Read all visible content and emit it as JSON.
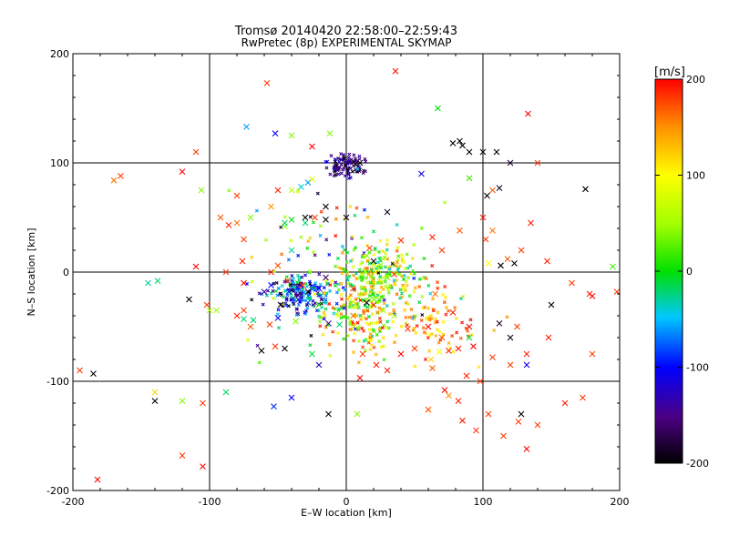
{
  "chart_data": {
    "type": "scatter",
    "title": "Tromsø 20140420 22:58:00–22:59:43",
    "subtitle": "RwPretec (8p) EXPERIMENTAL SKYMAP",
    "xlabel": "E–W location [km]",
    "ylabel": "N–S location [km]",
    "xlim": [
      -200,
      200
    ],
    "ylim": [
      -200,
      200
    ],
    "x_ticks": [
      -200,
      -100,
      0,
      100,
      200
    ],
    "y_ticks": [
      -200,
      -100,
      0,
      100,
      200
    ],
    "grid_lines": [
      -100,
      0,
      100
    ],
    "colorbar": {
      "label": "[m/s]",
      "min": -200,
      "max": 200,
      "ticks": [
        200,
        100,
        0,
        -100,
        -200
      ]
    },
    "points": [
      {
        "x": 133,
        "y": 145,
        "v": 200,
        "m": "x"
      },
      {
        "x": 128,
        "y": 20,
        "v": 180,
        "m": "x"
      },
      {
        "x": 160,
        "y": -120,
        "v": 190,
        "m": "x"
      },
      {
        "x": 132,
        "y": -162,
        "v": 200,
        "m": "x"
      },
      {
        "x": 126,
        "y": -137,
        "v": 180,
        "m": "x"
      },
      {
        "x": 85,
        "y": -136,
        "v": 190,
        "m": "x"
      },
      {
        "x": 60,
        "y": -126,
        "v": 170,
        "m": "x"
      },
      {
        "x": 75,
        "y": -113,
        "v": 150,
        "m": "x"
      },
      {
        "x": 82,
        "y": -118,
        "v": 190,
        "m": "x"
      },
      {
        "x": 72,
        "y": -108,
        "v": 200,
        "m": "x"
      },
      {
        "x": 100,
        "y": 50,
        "v": 190,
        "m": "x"
      },
      {
        "x": 180,
        "y": -22,
        "v": 200,
        "m": "x"
      },
      {
        "x": 83,
        "y": 38,
        "v": 170,
        "m": "x"
      },
      {
        "x": 107,
        "y": 75,
        "v": 170,
        "m": "x"
      },
      {
        "x": 120,
        "y": -60,
        "v": -190,
        "m": "x"
      },
      {
        "x": 128,
        "y": -130,
        "v": -200,
        "m": "x"
      },
      {
        "x": 132,
        "y": -85,
        "v": -110,
        "m": "x"
      },
      {
        "x": 112,
        "y": -47,
        "v": -180,
        "m": "x"
      },
      {
        "x": 103,
        "y": 70,
        "v": -200,
        "m": "x"
      },
      {
        "x": 112,
        "y": 77,
        "v": -190,
        "m": "x"
      },
      {
        "x": 113,
        "y": 6,
        "v": -200,
        "m": "x"
      },
      {
        "x": 123,
        "y": 8,
        "v": -200,
        "m": "x"
      },
      {
        "x": 104,
        "y": 8,
        "v": 100,
        "m": "x"
      },
      {
        "x": 90,
        "y": 86,
        "v": 20,
        "m": "x"
      },
      {
        "x": 55,
        "y": 90,
        "v": -110,
        "m": "x"
      },
      {
        "x": 85,
        "y": 116,
        "v": -200,
        "m": "x"
      },
      {
        "x": 30,
        "y": 55,
        "v": -190,
        "m": "x"
      },
      {
        "x": 40,
        "y": 29,
        "v": 180,
        "m": "x"
      },
      {
        "x": 63,
        "y": 32,
        "v": 190,
        "m": "x"
      },
      {
        "x": 70,
        "y": 20,
        "v": 180,
        "m": "x"
      },
      {
        "x": 35,
        "y": -2,
        "v": 180,
        "m": "x"
      },
      {
        "x": 65,
        "y": -20,
        "v": 160,
        "m": "x"
      },
      {
        "x": 78,
        "y": -37,
        "v": 190,
        "m": "x"
      },
      {
        "x": 90,
        "y": -50,
        "v": 200,
        "m": "x"
      },
      {
        "x": 70,
        "y": -60,
        "v": 170,
        "m": "x"
      },
      {
        "x": 60,
        "y": -50,
        "v": 200,
        "m": "x"
      },
      {
        "x": 45,
        "y": -52,
        "v": 180,
        "m": "x"
      },
      {
        "x": 50,
        "y": -70,
        "v": 180,
        "m": "x"
      },
      {
        "x": 75,
        "y": -72,
        "v": 190,
        "m": "x"
      },
      {
        "x": 82,
        "y": -70,
        "v": 190,
        "m": "x"
      },
      {
        "x": 63,
        "y": -88,
        "v": 170,
        "m": "x"
      },
      {
        "x": 88,
        "y": -95,
        "v": 190,
        "m": "x"
      },
      {
        "x": 68,
        "y": -73,
        "v": 100,
        "m": "x"
      },
      {
        "x": 90,
        "y": -60,
        "v": -10,
        "m": "x"
      },
      {
        "x": 93,
        "y": -68,
        "v": 200,
        "m": "x"
      },
      {
        "x": 62,
        "y": -80,
        "v": 120,
        "m": "x"
      },
      {
        "x": 30,
        "y": -90,
        "v": 190,
        "m": "x"
      },
      {
        "x": 10,
        "y": -97,
        "v": 200,
        "m": "x"
      },
      {
        "x": 12,
        "y": -75,
        "v": 180,
        "m": "x"
      },
      {
        "x": 40,
        "y": -75,
        "v": 200,
        "m": "x"
      },
      {
        "x": 20,
        "y": -30,
        "v": 190,
        "m": "x"
      },
      {
        "x": 5,
        "y": -40,
        "v": 160,
        "m": "x"
      },
      {
        "x": 22,
        "y": -85,
        "v": 190,
        "m": "x"
      },
      {
        "x": 8,
        "y": -130,
        "v": 40,
        "m": "x"
      },
      {
        "x": -13,
        "y": -130,
        "v": -200,
        "m": "x"
      },
      {
        "x": -40,
        "y": -115,
        "v": -100,
        "m": "x"
      },
      {
        "x": -53,
        "y": -123,
        "v": -90,
        "m": "x"
      },
      {
        "x": -20,
        "y": -85,
        "v": -130,
        "m": "x"
      },
      {
        "x": -25,
        "y": -75,
        "v": -10,
        "m": "x"
      },
      {
        "x": -45,
        "y": -70,
        "v": -200,
        "m": "x"
      },
      {
        "x": -62,
        "y": -72,
        "v": -200,
        "m": "x"
      },
      {
        "x": -52,
        "y": -68,
        "v": 180,
        "m": "x"
      },
      {
        "x": -70,
        "y": -50,
        "v": 170,
        "m": "x"
      },
      {
        "x": -75,
        "y": -35,
        "v": 180,
        "m": "x"
      },
      {
        "x": -80,
        "y": -40,
        "v": 190,
        "m": "x"
      },
      {
        "x": -75,
        "y": -43,
        "v": -20,
        "m": "x"
      },
      {
        "x": -95,
        "y": -35,
        "v": 50,
        "m": "x"
      },
      {
        "x": -102,
        "y": -30,
        "v": 180,
        "m": "x"
      },
      {
        "x": -110,
        "y": 5,
        "v": 200,
        "m": "x"
      },
      {
        "x": -120,
        "y": 92,
        "v": 200,
        "m": "x"
      },
      {
        "x": -106,
        "y": 75,
        "v": 40,
        "m": "x"
      },
      {
        "x": -138,
        "y": -8,
        "v": -20,
        "m": "x"
      },
      {
        "x": -88,
        "y": 0,
        "v": 180,
        "m": "x"
      },
      {
        "x": -75,
        "y": -10,
        "v": 200,
        "m": "x"
      },
      {
        "x": -76,
        "y": 10,
        "v": 190,
        "m": "x"
      },
      {
        "x": -75,
        "y": 30,
        "v": 180,
        "m": "x"
      },
      {
        "x": -80,
        "y": 45,
        "v": 160,
        "m": "x"
      },
      {
        "x": -86,
        "y": 43,
        "v": 190,
        "m": "x"
      },
      {
        "x": -70,
        "y": 50,
        "v": 40,
        "m": "x"
      },
      {
        "x": -55,
        "y": 60,
        "v": 150,
        "m": "x"
      },
      {
        "x": -45,
        "y": 42,
        "v": 40,
        "m": "x"
      },
      {
        "x": -40,
        "y": 48,
        "v": 0,
        "m": "x"
      },
      {
        "x": -30,
        "y": 50,
        "v": -200,
        "m": "x"
      },
      {
        "x": -23,
        "y": 50,
        "v": 180,
        "m": "x"
      },
      {
        "x": -15,
        "y": 48,
        "v": -200,
        "m": "x"
      },
      {
        "x": 0,
        "y": 50,
        "v": -190,
        "m": "x"
      },
      {
        "x": -15,
        "y": 60,
        "v": -200,
        "m": "x"
      },
      {
        "x": -30,
        "y": 45,
        "v": -20,
        "m": "x"
      },
      {
        "x": -33,
        "y": 78,
        "v": -40,
        "m": "x"
      },
      {
        "x": -28,
        "y": 82,
        "v": -60,
        "m": "x"
      },
      {
        "x": -25,
        "y": 85,
        "v": 80,
        "m": "x"
      },
      {
        "x": -40,
        "y": 75,
        "v": 60,
        "m": "x"
      },
      {
        "x": -45,
        "y": 45,
        "v": -20,
        "m": "x"
      },
      {
        "x": -40,
        "y": 20,
        "v": -30,
        "m": "x"
      },
      {
        "x": -50,
        "y": 6,
        "v": 170,
        "m": "x"
      },
      {
        "x": -55,
        "y": 0,
        "v": 190,
        "m": "x"
      },
      {
        "x": -43,
        "y": -8,
        "v": 170,
        "m": "x"
      },
      {
        "x": -32,
        "y": -12,
        "v": 180,
        "m": "x"
      },
      {
        "x": -48,
        "y": -30,
        "v": -200,
        "m": "x"
      },
      {
        "x": -50,
        "y": -42,
        "v": -110,
        "m": "x"
      },
      {
        "x": -37,
        "y": -45,
        "v": 40,
        "m": "x"
      },
      {
        "x": -13,
        "y": -47,
        "v": -150,
        "m": "x"
      },
      {
        "x": -5,
        "y": -48,
        "v": -20,
        "m": "x"
      },
      {
        "x": 5,
        "y": -15,
        "v": 180,
        "m": "x"
      },
      {
        "x": 5,
        "y": -27,
        "v": 80,
        "m": "x"
      },
      {
        "x": 15,
        "y": -28,
        "v": -200,
        "m": "x"
      },
      {
        "x": 27,
        "y": -35,
        "v": 60,
        "m": "x"
      },
      {
        "x": 35,
        "y": -40,
        "v": 50,
        "m": "x"
      },
      {
        "x": 20,
        "y": -25,
        "v": 40,
        "m": "x"
      },
      {
        "x": 14,
        "y": 0,
        "v": 40,
        "m": "x"
      },
      {
        "x": 22,
        "y": 5,
        "v": 60,
        "m": "x"
      },
      {
        "x": 15,
        "y": 15,
        "v": 40,
        "m": "x"
      },
      {
        "x": 17,
        "y": 22,
        "v": 180,
        "m": "x"
      },
      {
        "x": 20,
        "y": 10,
        "v": -200,
        "m": "x"
      },
      {
        "x": 30,
        "y": -5,
        "v": 30,
        "m": "x"
      },
      {
        "x": -20,
        "y": -30,
        "v": 20,
        "m": "x"
      },
      {
        "x": -28,
        "y": -28,
        "v": -80,
        "m": "x"
      },
      {
        "x": -35,
        "y": -25,
        "v": -110,
        "m": "x"
      },
      {
        "x": -42,
        "y": -18,
        "v": -90,
        "m": "x"
      },
      {
        "x": -28,
        "y": -18,
        "v": -200,
        "m": "x"
      },
      {
        "x": -20,
        "y": -15,
        "v": -100,
        "m": "x"
      },
      {
        "x": -15,
        "y": -5,
        "v": -160,
        "m": "x"
      },
      {
        "x": -55,
        "y": -12,
        "v": -100,
        "m": "x"
      },
      {
        "x": -60,
        "y": -18,
        "v": -130,
        "m": "x"
      },
      {
        "x": -80,
        "y": 70,
        "v": 180,
        "m": "x"
      },
      {
        "x": -92,
        "y": 50,
        "v": 170,
        "m": "x"
      },
      {
        "x": -52,
        "y": 127,
        "v": -100,
        "m": "x"
      },
      {
        "x": -73,
        "y": 133,
        "v": -60,
        "m": "x"
      },
      {
        "x": -40,
        "y": 125,
        "v": 40,
        "m": "x"
      },
      {
        "x": -12,
        "y": 127,
        "v": 40,
        "m": "x"
      },
      {
        "x": -25,
        "y": 115,
        "v": 200,
        "m": "x"
      },
      {
        "x": 10,
        "y": 100,
        "v": -200,
        "m": "x"
      },
      {
        "x": -50,
        "y": 75,
        "v": 190,
        "m": "x"
      },
      {
        "x": -145,
        "y": -10,
        "v": -30,
        "m": "x"
      },
      {
        "x": -100,
        "y": -35,
        "v": 60,
        "m": "x"
      },
      {
        "x": -56,
        "y": -48,
        "v": 180,
        "m": "x"
      },
      {
        "x": -68,
        "y": -44,
        "v": -20,
        "m": "x"
      },
      {
        "x": -88,
        "y": -110,
        "v": -20,
        "m": "x"
      },
      {
        "x": -105,
        "y": -120,
        "v": 180,
        "m": "x"
      },
      {
        "x": -120,
        "y": -118,
        "v": 40,
        "m": "x"
      },
      {
        "x": -140,
        "y": -110,
        "v": 120,
        "m": "x"
      },
      {
        "x": -182,
        "y": -190,
        "v": 200,
        "m": "x"
      },
      {
        "x": -105,
        "y": -178,
        "v": 200,
        "m": "x"
      },
      {
        "x": -120,
        "y": -168,
        "v": 180,
        "m": "x"
      },
      {
        "x": -185,
        "y": -93,
        "v": -200,
        "m": "x"
      },
      {
        "x": -195,
        "y": -90,
        "v": 180,
        "m": "x"
      },
      {
        "x": -165,
        "y": 88,
        "v": 180,
        "m": "x"
      },
      {
        "x": -170,
        "y": 84,
        "v": 160,
        "m": "x"
      },
      {
        "x": -110,
        "y": 110,
        "v": 180,
        "m": "x"
      },
      {
        "x": -115,
        "y": -25,
        "v": -200,
        "m": "x"
      },
      {
        "x": -140,
        "y": -118,
        "v": -200,
        "m": "x"
      },
      {
        "x": -58,
        "y": 173,
        "v": 180,
        "m": "x"
      },
      {
        "x": 36,
        "y": 184,
        "v": 190,
        "m": "x"
      },
      {
        "x": 67,
        "y": 150,
        "v": 0,
        "m": "x"
      },
      {
        "x": 78,
        "y": 118,
        "v": -200,
        "m": "x"
      },
      {
        "x": 83,
        "y": 120,
        "v": -200,
        "m": "x"
      },
      {
        "x": 90,
        "y": 110,
        "v": -200,
        "m": "x"
      },
      {
        "x": 100,
        "y": 110,
        "v": -190,
        "m": "x"
      },
      {
        "x": 110,
        "y": 110,
        "v": -200,
        "m": "x"
      },
      {
        "x": 120,
        "y": 100,
        "v": -180,
        "m": "x"
      },
      {
        "x": 140,
        "y": 100,
        "v": 180,
        "m": "x"
      },
      {
        "x": 175,
        "y": 76,
        "v": -200,
        "m": "x"
      },
      {
        "x": 135,
        "y": 45,
        "v": 190,
        "m": "x"
      },
      {
        "x": 147,
        "y": 10,
        "v": 190,
        "m": "x"
      },
      {
        "x": 165,
        "y": -10,
        "v": 180,
        "m": "x"
      },
      {
        "x": 178,
        "y": -20,
        "v": 190,
        "m": "x"
      },
      {
        "x": 195,
        "y": 5,
        "v": 20,
        "m": "x"
      },
      {
        "x": 198,
        "y": -18,
        "v": 180,
        "m": "x"
      },
      {
        "x": 150,
        "y": -30,
        "v": -200,
        "m": "x"
      },
      {
        "x": 148,
        "y": -60,
        "v": 190,
        "m": "x"
      },
      {
        "x": 180,
        "y": -75,
        "v": 180,
        "m": "x"
      },
      {
        "x": 173,
        "y": -115,
        "v": 180,
        "m": "x"
      },
      {
        "x": 140,
        "y": -140,
        "v": 180,
        "m": "x"
      },
      {
        "x": 115,
        "y": -150,
        "v": 180,
        "m": "x"
      },
      {
        "x": 95,
        "y": -145,
        "v": 180,
        "m": "x"
      },
      {
        "x": 104,
        "y": -130,
        "v": 180,
        "m": "x"
      },
      {
        "x": 98,
        "y": -100,
        "v": 180,
        "m": "x"
      },
      {
        "x": 120,
        "y": -85,
        "v": 180,
        "m": "x"
      },
      {
        "x": 132,
        "y": -75,
        "v": 190,
        "m": "x"
      },
      {
        "x": 107,
        "y": -78,
        "v": 180,
        "m": "x"
      },
      {
        "x": 125,
        "y": -50,
        "v": 180,
        "m": "x"
      },
      {
        "x": 118,
        "y": 12,
        "v": 170,
        "m": "x"
      },
      {
        "x": 102,
        "y": 30,
        "v": 180,
        "m": "x"
      },
      {
        "x": 107,
        "y": 38,
        "v": 160,
        "m": "x"
      }
    ],
    "clusters": [
      {
        "cx": -33,
        "cy": -20,
        "sx": 18,
        "sy": 13,
        "n": 170,
        "vmin": -200,
        "vmax": 0
      },
      {
        "cx": 25,
        "cy": -5,
        "sx": 22,
        "sy": 20,
        "n": 200,
        "vmin": -40,
        "vmax": 150
      },
      {
        "cx": 0,
        "cy": 98,
        "sx": 10,
        "sy": 7,
        "n": 90,
        "vmin": -200,
        "vmax": -120
      },
      {
        "cx": 10,
        "cy": -40,
        "sx": 20,
        "sy": 25,
        "n": 150,
        "vmin": -40,
        "vmax": 200
      },
      {
        "cx": 60,
        "cy": -45,
        "sx": 30,
        "sy": 25,
        "n": 90,
        "vmin": 100,
        "vmax": 200
      },
      {
        "cx": 0,
        "cy": 10,
        "sx": 50,
        "sy": 55,
        "n": 110,
        "vmin": -200,
        "vmax": 200
      }
    ]
  }
}
